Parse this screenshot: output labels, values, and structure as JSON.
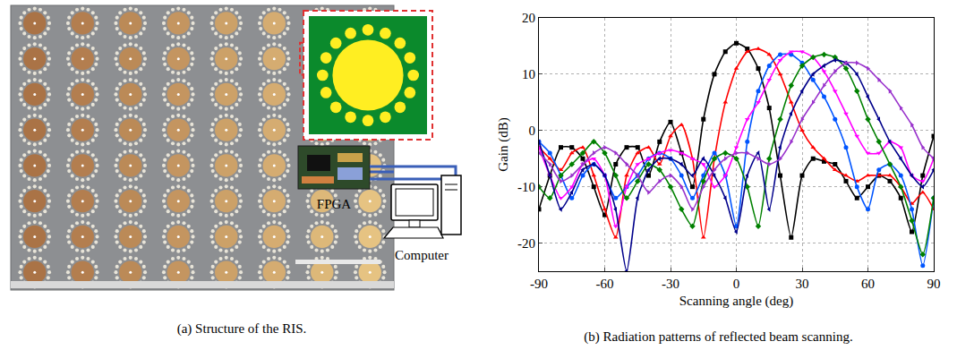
{
  "diagram": {
    "caption": "(a) Structure of the RIS.",
    "array": {
      "rows": 8,
      "cols": 8
    },
    "controller": "FPGA",
    "host": "Computer"
  },
  "chart_data": {
    "type": "line",
    "title": "(b) Radiation patterns of reflected beam scanning.",
    "x_label": "Scanning angle (deg)",
    "y_label": "Gain (dB)",
    "x": [
      -90,
      -85,
      -80,
      -75,
      -70,
      -65,
      -60,
      -55,
      -50,
      -45,
      -40,
      -35,
      -30,
      -25,
      -20,
      -15,
      -10,
      -5,
      0,
      5,
      10,
      15,
      20,
      25,
      30,
      35,
      40,
      45,
      50,
      55,
      60,
      65,
      70,
      75,
      80,
      85,
      90
    ],
    "xlim": [
      -90,
      90
    ],
    "xticks": [
      -90,
      -60,
      -30,
      0,
      30,
      60,
      90
    ],
    "ylim": [
      -25,
      20
    ],
    "yticks": [
      -20,
      -10,
      0,
      10,
      20
    ],
    "grid": true,
    "line_style": "solid",
    "series": [
      {
        "color": "#000000",
        "marker": "square",
        "values": [
          -14,
          -8,
          -3,
          -3,
          -5,
          -10,
          -15,
          -6,
          -3,
          -3,
          -8,
          -2,
          1.5,
          -4,
          -10,
          2,
          10,
          14,
          15.5,
          14.5,
          11,
          4,
          -8,
          -19,
          -8,
          -5,
          -5.5,
          -6,
          -9,
          -12,
          -10,
          -8,
          -9,
          -12,
          -18,
          -8,
          -1
        ]
      },
      {
        "color": "#ff0000",
        "marker": "triangle-up",
        "values": [
          -3,
          -5,
          -7,
          -4,
          -3,
          -8,
          -14,
          -19,
          -8,
          -4,
          -3,
          -6,
          -1,
          1,
          -5,
          -19,
          -5,
          5,
          11,
          14,
          14.5,
          13.5,
          10,
          5,
          0,
          -3,
          -5,
          -7,
          -8,
          -9,
          -8,
          -8,
          -8,
          -10,
          -13,
          -11,
          -14
        ]
      },
      {
        "color": "#0055ff",
        "marker": "circle",
        "values": [
          -2,
          -4,
          -8,
          -12,
          -8,
          -6,
          -8,
          -12,
          -10,
          -8,
          -5,
          -4,
          -5,
          -8,
          -12,
          -8,
          -4,
          -8,
          -17,
          -2,
          7,
          11.5,
          13.5,
          13.5,
          12,
          9,
          6,
          2,
          -3,
          -10,
          -14,
          -7,
          -6,
          -8,
          -14,
          -24,
          -12
        ]
      },
      {
        "color": "#ff00ff",
        "marker": "triangle-down",
        "values": [
          -3,
          -8,
          -12,
          -10,
          -6,
          -5,
          -8,
          -17,
          -10,
          -6,
          -5,
          -4,
          -3.5,
          -4,
          -5,
          -6,
          -10,
          -8,
          -3,
          2,
          5,
          9,
          12.5,
          14,
          14,
          13,
          10.5,
          7,
          3,
          -1,
          -4,
          -4,
          -2,
          -3,
          -8,
          -9,
          -5
        ]
      },
      {
        "color": "#008000",
        "marker": "diamond",
        "values": [
          -10,
          -12,
          -8,
          -6,
          -4,
          -2,
          -4,
          -8,
          -12,
          -9,
          -6,
          -7,
          -10,
          -14,
          -17,
          -9,
          -5,
          -4,
          -5,
          -10,
          -17,
          -5,
          2,
          8,
          11.5,
          13,
          13.5,
          13,
          11,
          7,
          2,
          -2,
          -6,
          -10,
          -16,
          -22,
          -12
        ]
      },
      {
        "color": "#00008b",
        "marker": "triangle-left",
        "values": [
          -2,
          -8,
          -14,
          -11,
          -7,
          -6,
          -8,
          -14,
          -25,
          -12,
          -7,
          -5,
          -5,
          -6,
          -8,
          -5,
          -8,
          -12,
          -18,
          -8,
          -4,
          -14,
          -3,
          3,
          7,
          10,
          11.5,
          12.5,
          12,
          10,
          6,
          2,
          -2,
          -5,
          -8,
          -10,
          -7
        ]
      },
      {
        "color": "#9932cc",
        "marker": "triangle-right",
        "values": [
          -4,
          -6,
          -9,
          -8,
          -6,
          -4,
          -3,
          -4,
          -6,
          -8,
          -11,
          -9,
          -8,
          -10,
          -14,
          -10,
          -7,
          -5,
          -4,
          -4,
          -5,
          -6,
          -5,
          -2,
          2,
          5,
          8,
          10.5,
          12,
          12,
          11,
          9,
          7,
          4,
          1,
          -3,
          -5
        ]
      }
    ]
  }
}
